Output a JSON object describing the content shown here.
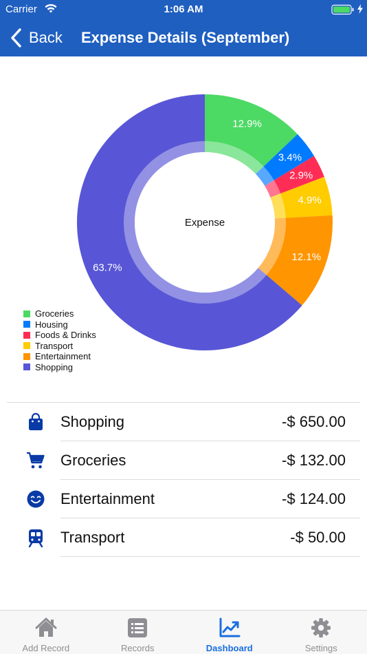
{
  "status_bar": {
    "carrier": "Carrier",
    "time": "1:06 AM"
  },
  "nav": {
    "back_label": "Back",
    "title": "Expense Details (September)"
  },
  "chart_data": {
    "type": "pie",
    "center_label": "Expense",
    "slices": [
      {
        "label": "Groceries",
        "value": 12.9,
        "display": "12.9%",
        "color": "#4cd964"
      },
      {
        "label": "Housing",
        "value": 3.4,
        "display": "3.4%",
        "color": "#007aff"
      },
      {
        "label": "Foods & Drinks",
        "value": 2.9,
        "display": "2.9%",
        "color": "#ff2d55"
      },
      {
        "label": "Transport",
        "value": 4.9,
        "display": "4.9%",
        "color": "#ffcc00"
      },
      {
        "label": "Entertainment",
        "value": 12.1,
        "display": "12.1%",
        "color": "#ff9500"
      },
      {
        "label": "Shopping",
        "value": 63.7,
        "display": "63.7%",
        "color": "#5856d6"
      }
    ],
    "legend_position": "bottom-left"
  },
  "expenses": [
    {
      "name": "Shopping",
      "amount": "-$ 650.00",
      "icon": "shopping-bag-icon"
    },
    {
      "name": "Groceries",
      "amount": "-$ 132.00",
      "icon": "cart-icon"
    },
    {
      "name": "Entertainment",
      "amount": "-$ 124.00",
      "icon": "smiley-icon"
    },
    {
      "name": "Transport",
      "amount": "-$ 50.00",
      "icon": "train-icon"
    }
  ],
  "tabbar": {
    "tabs": [
      {
        "label": "Add Record",
        "icon": "home-icon",
        "active": false
      },
      {
        "label": "Records",
        "icon": "list-icon",
        "active": false
      },
      {
        "label": "Dashboard",
        "icon": "chart-icon",
        "active": true
      },
      {
        "label": "Settings",
        "icon": "gear-icon",
        "active": false
      }
    ]
  },
  "colors": {
    "nav_bar": "#1f5fc0",
    "icon_blue": "#0a3aa6",
    "active_tab": "#1a6fe0",
    "inactive_tab": "#8e8e93"
  }
}
